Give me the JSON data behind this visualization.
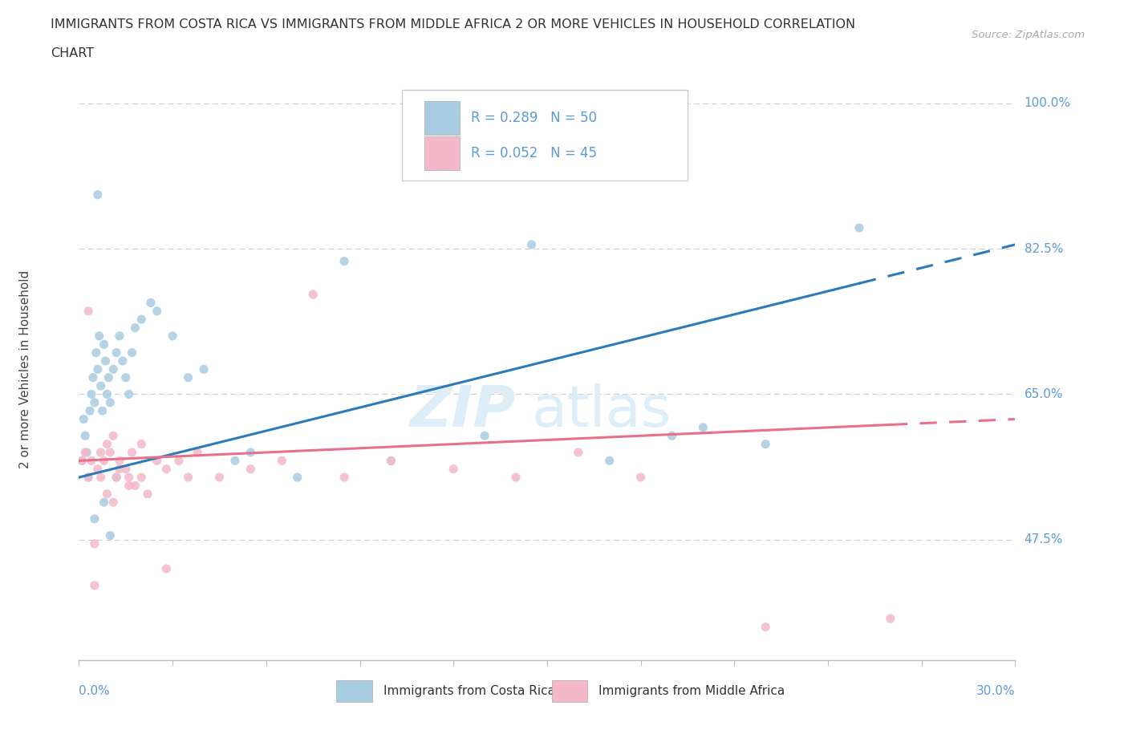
{
  "title_line1": "IMMIGRANTS FROM COSTA RICA VS IMMIGRANTS FROM MIDDLE AFRICA 2 OR MORE VEHICLES IN HOUSEHOLD CORRELATION",
  "title_line2": "CHART",
  "source_text": "Source: ZipAtlas.com",
  "ylabel_ticks": [
    47.5,
    65.0,
    82.5,
    100.0
  ],
  "ylabel_label": "2 or more Vehicles in Household",
  "xmin": 0.0,
  "xmax": 30.0,
  "ymin": 33.0,
  "ymax": 103.0,
  "legend_blue_r": "0.289",
  "legend_blue_n": "50",
  "legend_pink_r": "0.052",
  "legend_pink_n": "45",
  "legend_label_blue": "Immigrants from Costa Rica",
  "legend_label_pink": "Immigrants from Middle Africa",
  "blue_dot_color": "#a8cce0",
  "pink_dot_color": "#f4b8c8",
  "blue_line_color": "#2b7bba",
  "pink_line_color": "#e8708a",
  "grid_color": "#cccccc",
  "axis_label_color": "#5b9bd5",
  "title_color": "#333333",
  "watermark_text": "ZIPatlas",
  "watermark_color": "#ddeef8",
  "cr_x": [
    0.1,
    0.15,
    0.2,
    0.25,
    0.3,
    0.35,
    0.4,
    0.45,
    0.5,
    0.55,
    0.6,
    0.65,
    0.7,
    0.75,
    0.8,
    0.85,
    0.9,
    0.95,
    1.0,
    1.1,
    1.2,
    1.3,
    1.4,
    1.5,
    1.6,
    1.7,
    1.8,
    2.0,
    2.3,
    2.5,
    3.0,
    3.5,
    4.0,
    5.0,
    5.5,
    7.0,
    8.5,
    10.0,
    13.0,
    14.5,
    17.0,
    19.0,
    20.0,
    22.0,
    25.0,
    1.0,
    0.5,
    0.8,
    1.2,
    0.6
  ],
  "cr_y": [
    57.0,
    62.0,
    60.0,
    58.0,
    55.0,
    63.0,
    65.0,
    67.0,
    64.0,
    70.0,
    68.0,
    72.0,
    66.0,
    63.0,
    71.0,
    69.0,
    65.0,
    67.0,
    64.0,
    68.0,
    70.0,
    72.0,
    69.0,
    67.0,
    65.0,
    70.0,
    73.0,
    74.0,
    76.0,
    75.0,
    72.0,
    67.0,
    68.0,
    57.0,
    58.0,
    55.0,
    81.0,
    57.0,
    60.0,
    83.0,
    57.0,
    60.0,
    61.0,
    59.0,
    85.0,
    48.0,
    50.0,
    52.0,
    55.0,
    89.0
  ],
  "ma_x": [
    0.1,
    0.2,
    0.3,
    0.4,
    0.5,
    0.6,
    0.7,
    0.8,
    0.9,
    1.0,
    1.1,
    1.2,
    1.3,
    1.5,
    1.6,
    1.7,
    1.8,
    2.0,
    2.2,
    2.5,
    2.8,
    3.2,
    3.8,
    4.5,
    5.5,
    6.5,
    7.5,
    8.5,
    10.0,
    12.0,
    14.0,
    16.0,
    18.0,
    22.0,
    26.0,
    0.3,
    0.5,
    0.7,
    0.9,
    1.1,
    1.3,
    1.6,
    2.0,
    2.8,
    3.5
  ],
  "ma_y": [
    57.0,
    58.0,
    55.0,
    57.0,
    42.0,
    56.0,
    58.0,
    57.0,
    59.0,
    58.0,
    60.0,
    55.0,
    57.0,
    56.0,
    55.0,
    58.0,
    54.0,
    55.0,
    53.0,
    57.0,
    56.0,
    57.0,
    58.0,
    55.0,
    56.0,
    57.0,
    77.0,
    55.0,
    57.0,
    56.0,
    55.0,
    58.0,
    55.0,
    37.0,
    38.0,
    75.0,
    47.0,
    55.0,
    53.0,
    52.0,
    56.0,
    54.0,
    59.0,
    44.0,
    55.0
  ],
  "blue_line_x0": 0.0,
  "blue_line_y0": 55.0,
  "blue_line_x1": 30.0,
  "blue_line_y1": 83.0,
  "pink_line_x0": 0.0,
  "pink_line_y0": 57.0,
  "pink_line_x1": 30.0,
  "pink_line_y1": 62.0,
  "blue_solid_end": 25.0,
  "pink_solid_end": 26.0
}
